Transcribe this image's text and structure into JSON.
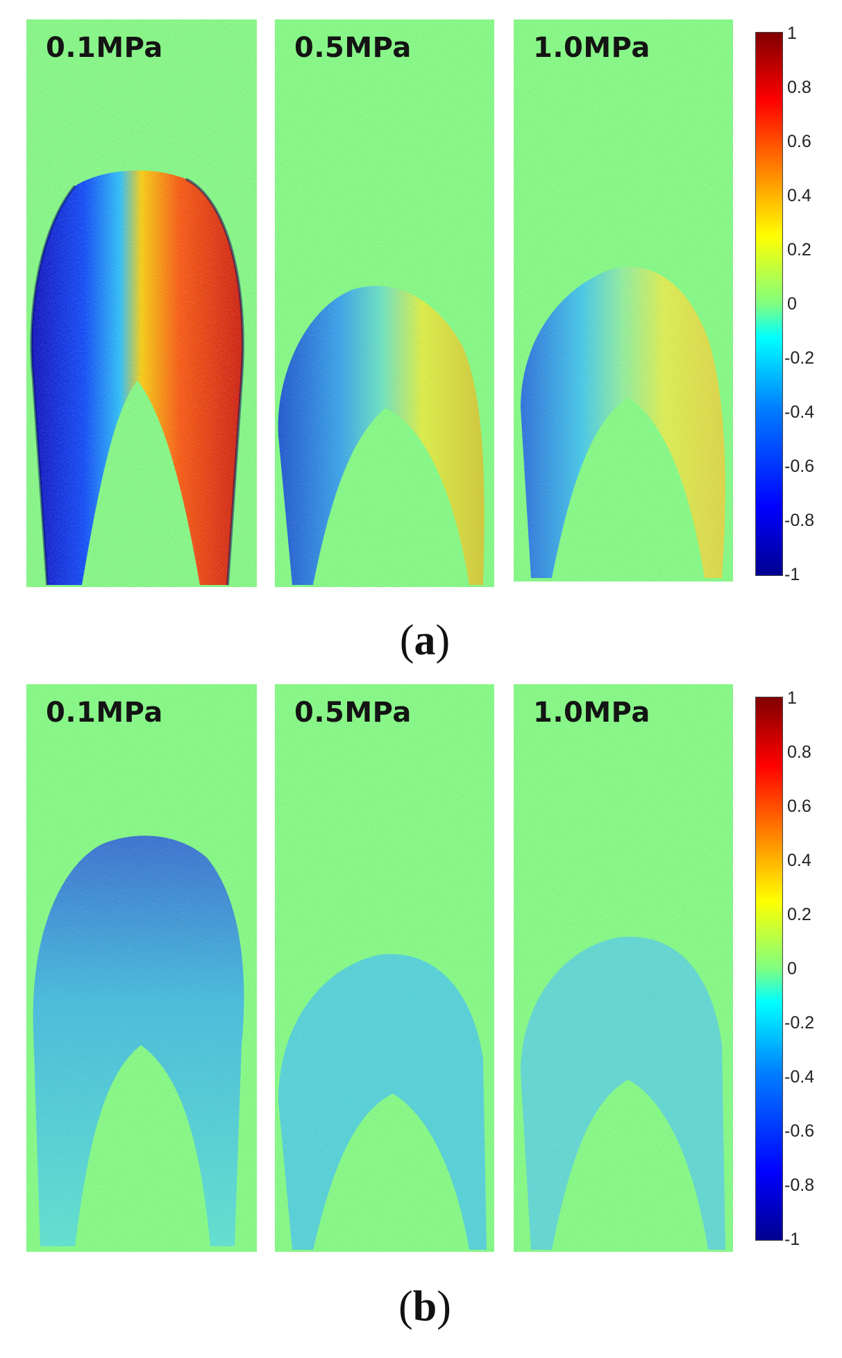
{
  "figure_a": {
    "label_open": "(",
    "label_letter": "a",
    "label_close": ")",
    "panels": [
      {
        "title": "0.1MPa"
      },
      {
        "title": "0.5MPa"
      },
      {
        "title": "1.0MPa"
      }
    ],
    "colorbar_ticks": [
      "1",
      "0.8",
      "0.6",
      "0.4",
      "0.2",
      "0",
      "-0.2",
      "-0.4",
      "-0.6",
      "-0.8",
      "-1"
    ]
  },
  "figure_b": {
    "label_open": "(",
    "label_letter": "b",
    "label_close": ")",
    "panels": [
      {
        "title": "0.1MPa"
      },
      {
        "title": "0.5MPa"
      },
      {
        "title": "1.0MPa"
      }
    ],
    "colorbar_ticks": [
      "1",
      "0.8",
      "0.6",
      "0.4",
      "0.2",
      "0",
      "-0.2",
      "-0.4",
      "-0.6",
      "-0.8",
      "-1"
    ]
  },
  "colors": {
    "background_green": "#80ff80",
    "cmap_min": "#00008f",
    "cmap_max": "#800000"
  }
}
